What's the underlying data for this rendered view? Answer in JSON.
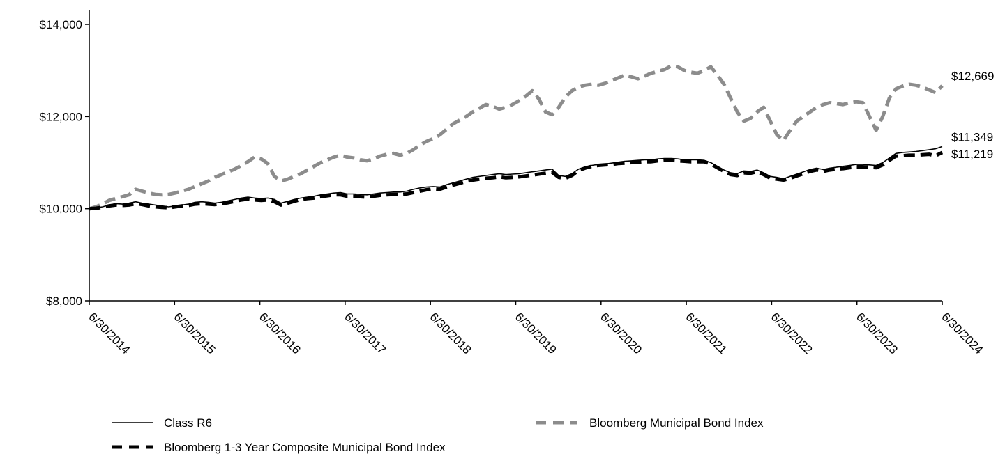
{
  "chart_data": {
    "type": "line",
    "title": "",
    "xlabel": "",
    "ylabel": "",
    "ylim": [
      8000,
      14000
    ],
    "grid": false,
    "legend_placement": "bottom",
    "y_ticks": [
      8000,
      10000,
      12000,
      14000
    ],
    "y_tick_labels": [
      "$8,000",
      "$10,000",
      "$12,000",
      "$14,000"
    ],
    "x_tick_labels": [
      "6/30/2014",
      "6/30/2015",
      "6/30/2016",
      "6/30/2017",
      "6/30/2018",
      "6/30/2019",
      "6/30/2020",
      "6/30/2021",
      "6/30/2022",
      "6/30/2023",
      "6/30/2024"
    ],
    "x_start": "2014-06-30",
    "series": [
      {
        "name": "Class R6",
        "style": "solid-thin",
        "color": "#000000",
        "end_label": "$11,349",
        "values": [
          10000,
          10020,
          10040,
          10080,
          10110,
          10100,
          10120,
          10150,
          10120,
          10100,
          10080,
          10060,
          10040,
          10060,
          10080,
          10100,
          10140,
          10150,
          10140,
          10120,
          10140,
          10170,
          10200,
          10230,
          10250,
          10230,
          10220,
          10230,
          10200,
          10120,
          10160,
          10200,
          10230,
          10250,
          10270,
          10300,
          10320,
          10340,
          10350,
          10320,
          10320,
          10310,
          10300,
          10320,
          10340,
          10350,
          10360,
          10360,
          10380,
          10420,
          10450,
          10470,
          10480,
          10470,
          10520,
          10560,
          10600,
          10640,
          10680,
          10700,
          10720,
          10740,
          10760,
          10740,
          10750,
          10760,
          10780,
          10800,
          10820,
          10840,
          10860,
          10720,
          10700,
          10760,
          10860,
          10900,
          10940,
          10960,
          10970,
          10990,
          11010,
          11030,
          11040,
          11050,
          11060,
          11060,
          11080,
          11090,
          11090,
          11080,
          11060,
          11060,
          11060,
          11050,
          11000,
          10920,
          10840,
          10780,
          10760,
          10820,
          10810,
          10840,
          10780,
          10700,
          10680,
          10650,
          10700,
          10750,
          10800,
          10850,
          10880,
          10850,
          10880,
          10900,
          10920,
          10940,
          10960,
          10960,
          10950,
          10940,
          11000,
          11100,
          11200,
          11220,
          11230,
          11240,
          11260,
          11280,
          11300,
          11349
        ]
      },
      {
        "name": "Bloomberg 1-3 Year Composite Municipal Bond Index",
        "style": "dashed-thick",
        "color": "#000000",
        "end_label": "$11,219",
        "values": [
          10000,
          10010,
          10030,
          10060,
          10080,
          10070,
          10080,
          10110,
          10090,
          10060,
          10040,
          10030,
          10020,
          10040,
          10060,
          10070,
          10100,
          10110,
          10100,
          10090,
          10110,
          10130,
          10160,
          10190,
          10210,
          10190,
          10180,
          10190,
          10150,
          10080,
          10120,
          10160,
          10200,
          10220,
          10230,
          10260,
          10280,
          10300,
          10300,
          10270,
          10270,
          10260,
          10250,
          10270,
          10290,
          10300,
          10310,
          10310,
          10320,
          10350,
          10380,
          10410,
          10430,
          10420,
          10470,
          10510,
          10550,
          10590,
          10620,
          10640,
          10660,
          10670,
          10690,
          10670,
          10680,
          10690,
          10710,
          10730,
          10750,
          10770,
          10790,
          10680,
          10660,
          10720,
          10830,
          10880,
          10920,
          10940,
          10950,
          10960,
          10980,
          10990,
          11000,
          11010,
          11020,
          11020,
          11040,
          11050,
          11050,
          11040,
          11030,
          11020,
          11020,
          11020,
          10970,
          10890,
          10810,
          10740,
          10720,
          10780,
          10770,
          10800,
          10740,
          10660,
          10640,
          10620,
          10660,
          10710,
          10760,
          10810,
          10840,
          10810,
          10840,
          10860,
          10870,
          10890,
          10910,
          10910,
          10900,
          10890,
          10950,
          11050,
          11140,
          11150,
          11160,
          11160,
          11170,
          11180,
          11150,
          11219
        ]
      },
      {
        "name": "Bloomberg Municipal Bond Index",
        "style": "dashed-thick",
        "color": "#8c8c8c",
        "end_label": "$12,669",
        "values": [
          10000,
          10040,
          10100,
          10180,
          10220,
          10260,
          10300,
          10420,
          10380,
          10340,
          10310,
          10300,
          10310,
          10340,
          10380,
          10420,
          10480,
          10540,
          10600,
          10680,
          10740,
          10800,
          10860,
          10940,
          11020,
          11120,
          11080,
          10980,
          10700,
          10600,
          10640,
          10700,
          10760,
          10840,
          10920,
          11000,
          11060,
          11120,
          11160,
          11120,
          11100,
          11060,
          11040,
          11080,
          11140,
          11180,
          11200,
          11160,
          11200,
          11280,
          11380,
          11460,
          11520,
          11600,
          11720,
          11840,
          11920,
          12000,
          12100,
          12180,
          12260,
          12220,
          12160,
          12200,
          12260,
          12340,
          12440,
          12560,
          12380,
          12100,
          12040,
          12200,
          12420,
          12560,
          12640,
          12680,
          12700,
          12680,
          12720,
          12780,
          12840,
          12900,
          12860,
          12820,
          12880,
          12940,
          12980,
          13020,
          13100,
          13080,
          13000,
          12960,
          12940,
          13000,
          13080,
          12900,
          12700,
          12400,
          12100,
          11900,
          11960,
          12100,
          12200,
          11900,
          11600,
          11480,
          11700,
          11900,
          12000,
          12100,
          12200,
          12260,
          12300,
          12280,
          12260,
          12300,
          12320,
          12300,
          12000,
          11700,
          12000,
          12400,
          12600,
          12660,
          12700,
          12680,
          12640,
          12580,
          12520,
          12669
        ]
      }
    ]
  }
}
